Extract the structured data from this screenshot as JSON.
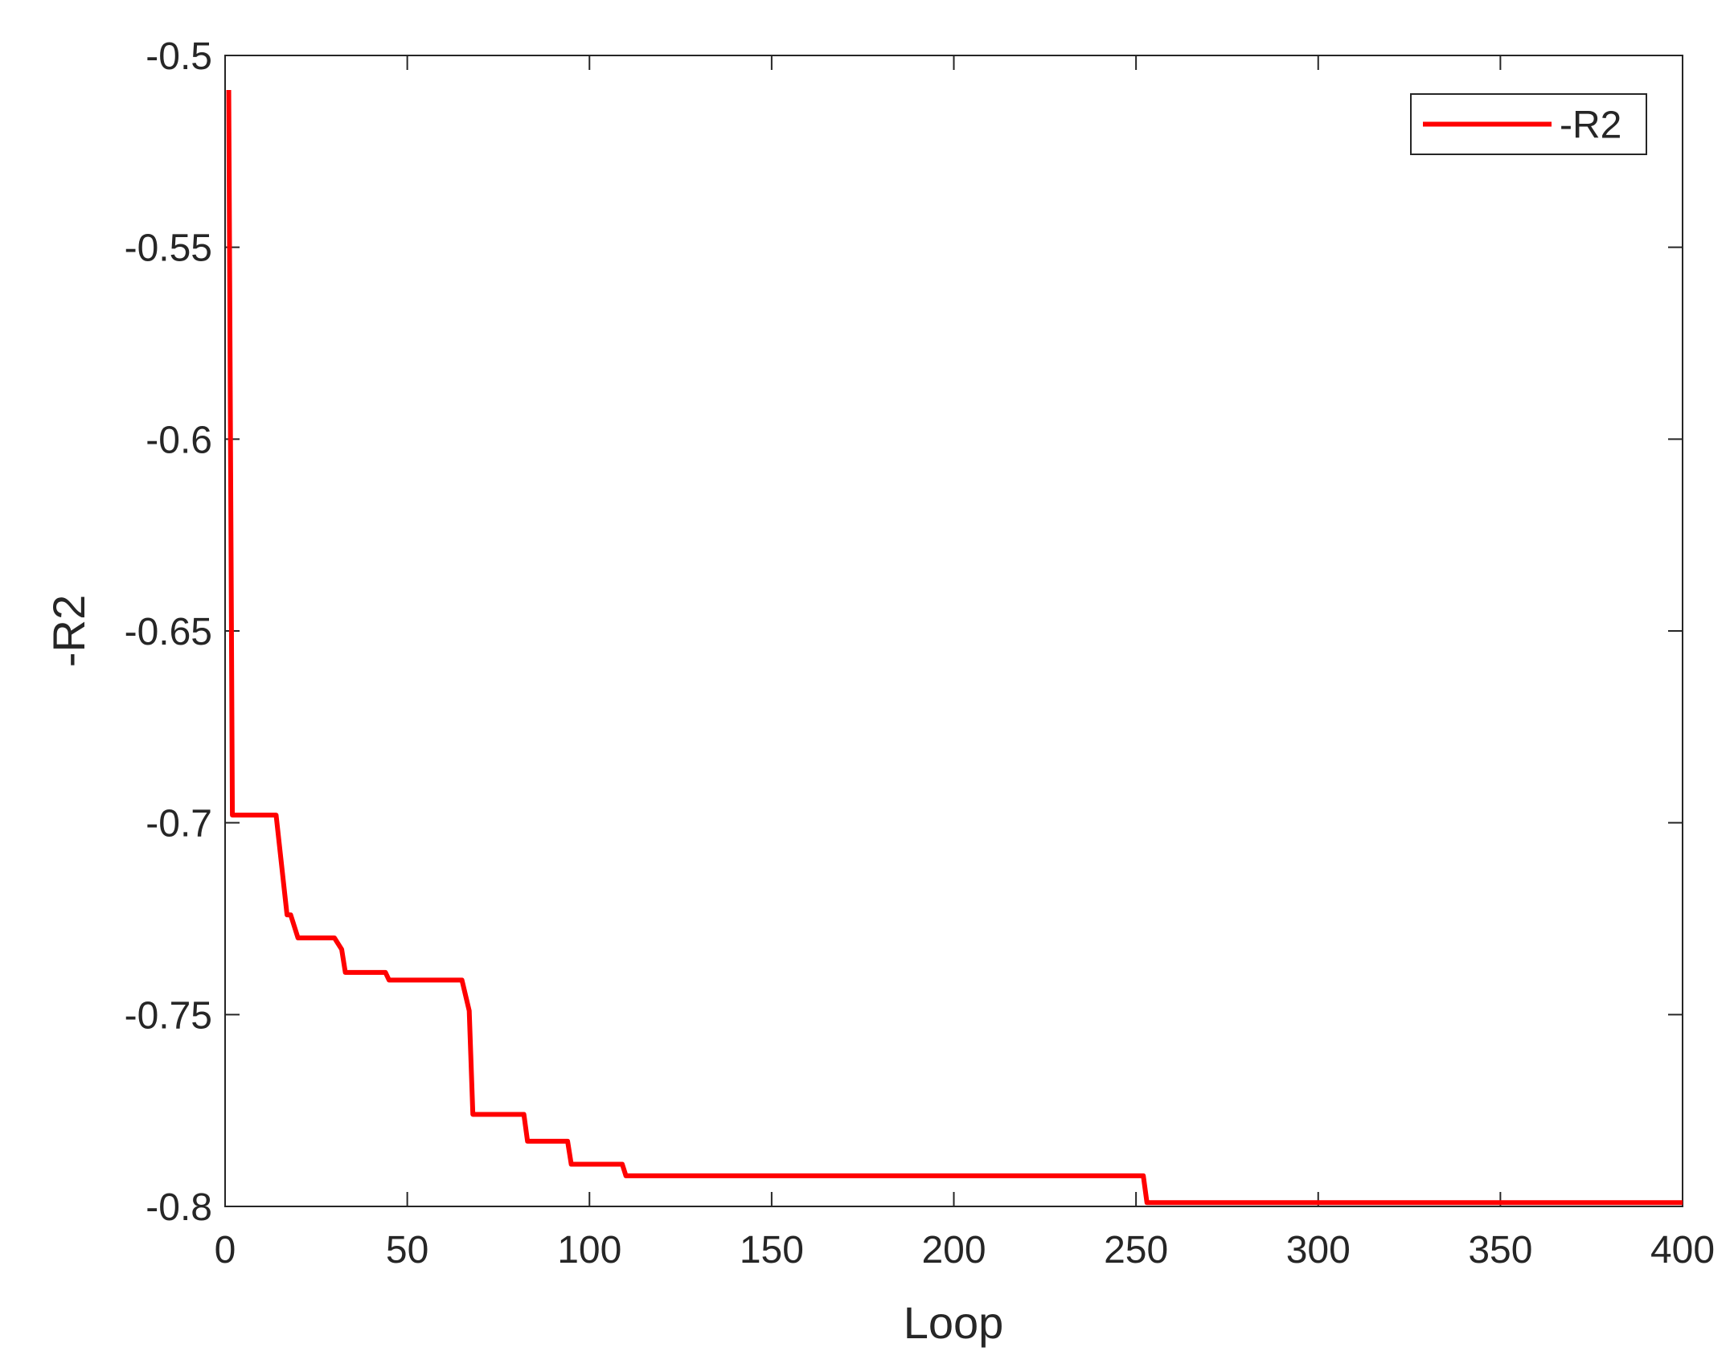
{
  "chart_data": {
    "type": "line",
    "xlabel": "Loop",
    "ylabel": "-R2",
    "x": [
      1,
      2,
      14,
      17,
      18,
      20,
      30,
      32,
      33,
      44,
      45,
      65,
      67,
      68,
      82,
      83,
      94,
      95,
      109,
      110,
      252,
      253,
      400
    ],
    "series": [
      {
        "name": "-R2",
        "color": "#ff0000",
        "values": [
          -0.509,
          -0.698,
          -0.698,
          -0.724,
          -0.724,
          -0.73,
          -0.73,
          -0.733,
          -0.739,
          -0.739,
          -0.741,
          -0.741,
          -0.749,
          -0.776,
          -0.776,
          -0.783,
          -0.783,
          -0.789,
          -0.789,
          -0.792,
          -0.792,
          -0.799,
          -0.799
        ]
      }
    ],
    "xlim": [
      0,
      400
    ],
    "xticks": [
      0,
      50,
      100,
      150,
      200,
      250,
      300,
      350,
      400
    ],
    "ylim": [
      -0.8,
      -0.5
    ],
    "yticks": [
      -0.8,
      -0.75,
      -0.7,
      -0.65,
      -0.6,
      -0.55,
      -0.5
    ],
    "legend": "upper right",
    "grid": false
  }
}
